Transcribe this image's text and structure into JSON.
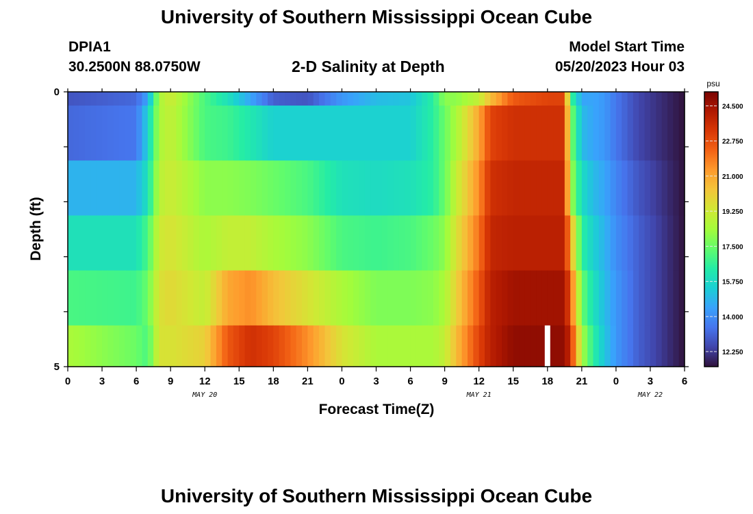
{
  "header": {
    "title": "University of Southern Mississippi Ocean Cube",
    "station_id": "DPIA1",
    "station_coords": "30.2500N  88.0750W",
    "subtitle": "2-D Salinity at Depth",
    "model_start_label": "Model Start Time",
    "model_start_value": "05/20/2023 Hour 03"
  },
  "footer": {
    "title": "University of Southern Mississippi Ocean Cube"
  },
  "chart_data": {
    "type": "heatmap",
    "title": "2-D Salinity at Depth",
    "xlabel": "Forecast Time(Z)",
    "ylabel": "Depth (ft)",
    "x_range_hours": [
      0,
      54
    ],
    "x_ticks": [
      {
        "h": 0,
        "label": "0"
      },
      {
        "h": 3,
        "label": "3"
      },
      {
        "h": 6,
        "label": "6"
      },
      {
        "h": 9,
        "label": "9"
      },
      {
        "h": 12,
        "label": "12"
      },
      {
        "h": 15,
        "label": "15"
      },
      {
        "h": 18,
        "label": "18"
      },
      {
        "h": 21,
        "label": "21"
      },
      {
        "h": 24,
        "label": "0"
      },
      {
        "h": 27,
        "label": "3"
      },
      {
        "h": 30,
        "label": "6"
      },
      {
        "h": 33,
        "label": "9"
      },
      {
        "h": 36,
        "label": "12"
      },
      {
        "h": 39,
        "label": "15"
      },
      {
        "h": 42,
        "label": "18"
      },
      {
        "h": 45,
        "label": "21"
      },
      {
        "h": 48,
        "label": "0"
      },
      {
        "h": 51,
        "label": "3"
      },
      {
        "h": 54,
        "label": "6"
      }
    ],
    "date_labels": [
      {
        "h": 12,
        "label": "MAY 20"
      },
      {
        "h": 36,
        "label": "MAY 21"
      },
      {
        "h": 51,
        "label": "MAY 22"
      }
    ],
    "y_range": [
      0,
      5
    ],
    "y_tick_labels": [
      {
        "v": 0,
        "label": "0"
      },
      {
        "v": 5,
        "label": "5"
      }
    ],
    "depth_bands": [
      0.25,
      1.25,
      2.25,
      3.25,
      4.25,
      5.0
    ],
    "colorbar": {
      "unit": "psu",
      "min": 11.5,
      "max": 25.2,
      "ticks": [
        "24.500",
        "22.750",
        "21.000",
        "19.250",
        "17.500",
        "15.750",
        "14.000",
        "12.250"
      ],
      "colors": [
        "#30123b",
        "#4145ab",
        "#4675ed",
        "#39a2fc",
        "#1bcfd4",
        "#24eca6",
        "#61fc6c",
        "#a4fc3b",
        "#d1e834",
        "#f3c63a",
        "#fe9b2d",
        "#f36315",
        "#d93806",
        "#b11901",
        "#7a0402"
      ]
    },
    "time_knots": [
      0,
      6,
      7,
      8,
      9,
      12,
      14,
      16,
      18,
      21,
      24,
      27,
      30,
      32,
      33,
      34,
      36,
      37,
      39,
      42,
      43.5,
      44,
      45,
      46,
      47,
      48,
      50,
      54
    ],
    "rows": [
      [
        12.8,
        13.2,
        14.5,
        18.5,
        19.2,
        17.0,
        16.0,
        14.5,
        13.0,
        12.8,
        14.2,
        15.0,
        15.2,
        16.5,
        18.0,
        18.0,
        19.0,
        20.5,
        22.5,
        23.0,
        23.0,
        17.0,
        14.5,
        14.5,
        14.2,
        13.5,
        12.5,
        11.5
      ],
      [
        13.2,
        13.5,
        15.5,
        18.5,
        19.0,
        17.0,
        16.8,
        16.2,
        15.5,
        15.5,
        15.5,
        15.5,
        15.5,
        16.5,
        17.5,
        18.5,
        21.0,
        23.0,
        23.5,
        23.5,
        23.5,
        18.0,
        15.0,
        14.5,
        14.2,
        13.5,
        12.5,
        11.5
      ],
      [
        14.8,
        14.8,
        16.0,
        18.8,
        19.2,
        18.0,
        18.0,
        17.8,
        17.5,
        17.0,
        16.0,
        15.8,
        16.0,
        16.5,
        17.5,
        19.0,
        21.5,
        23.5,
        23.8,
        23.8,
        23.8,
        18.5,
        15.8,
        15.0,
        14.5,
        13.8,
        12.8,
        11.5
      ],
      [
        16.0,
        16.0,
        17.0,
        19.2,
        19.5,
        18.5,
        19.0,
        19.0,
        18.5,
        18.0,
        17.0,
        16.8,
        17.0,
        17.5,
        18.0,
        19.5,
        22.0,
        23.8,
        24.0,
        24.0,
        24.0,
        21.0,
        16.5,
        15.5,
        14.8,
        14.0,
        13.0,
        11.5
      ],
      [
        17.0,
        16.8,
        17.5,
        19.5,
        19.8,
        19.0,
        21.0,
        21.5,
        20.5,
        19.5,
        18.5,
        17.8,
        17.8,
        18.0,
        18.5,
        20.0,
        22.5,
        24.0,
        24.5,
        24.5,
        24.5,
        22.5,
        17.5,
        16.0,
        15.0,
        14.2,
        13.0,
        11.5
      ],
      [
        18.5,
        17.5,
        17.0,
        19.5,
        19.5,
        20.0,
        22.5,
        23.5,
        23.0,
        21.5,
        19.5,
        18.5,
        18.5,
        18.5,
        19.0,
        20.5,
        23.0,
        24.0,
        24.8,
        24.8,
        24.8,
        23.5,
        18.5,
        16.5,
        15.2,
        14.2,
        13.0,
        11.5
      ]
    ],
    "gap_marker": {
      "h": 42,
      "row": 5
    }
  }
}
